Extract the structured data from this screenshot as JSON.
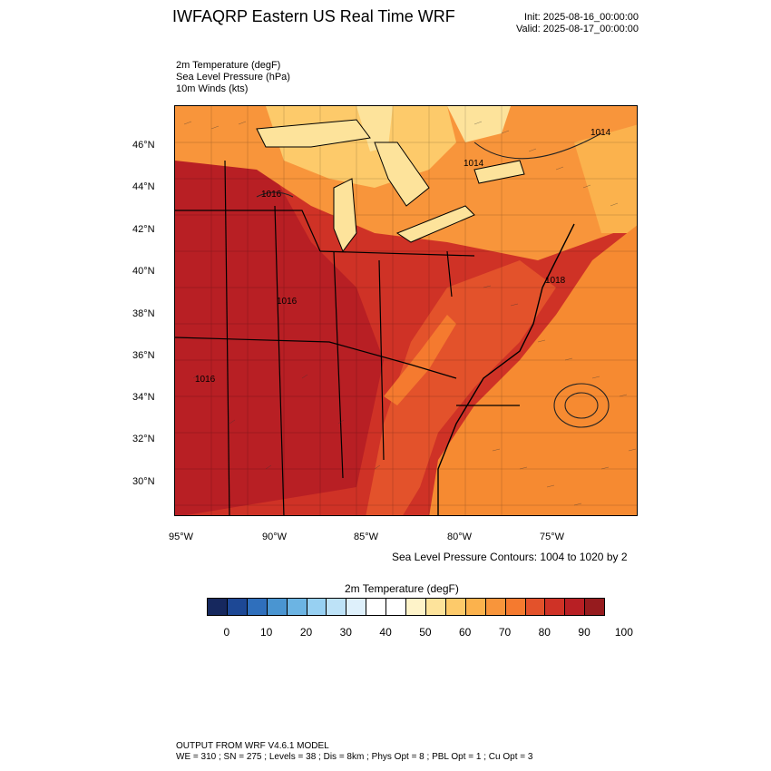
{
  "header": {
    "title": "IWFAQRP Eastern US Real Time WRF",
    "init": "Init: 2025-08-16_00:00:00",
    "valid": "Valid: 2025-08-17_00:00:00"
  },
  "fields": {
    "line1": "2m Temperature   (degF)",
    "line2": "Sea Level Pressure   (hPa)",
    "line3": "10m Winds   (kts)"
  },
  "map": {
    "lat_labels": [
      "46°N",
      "44°N",
      "42°N",
      "40°N",
      "38°N",
      "36°N",
      "34°N",
      "32°N",
      "30°N"
    ],
    "lon_labels": [
      "95°W",
      "90°W",
      "85°W",
      "80°W",
      "75°W"
    ],
    "pressure_labels": [
      "1014",
      "1014",
      "1016",
      "1018",
      "1016",
      "1016"
    ],
    "colors": {
      "hot": "#b81f24",
      "warm": "#e34a26",
      "mild": "#f57f2a",
      "cool": "#fbb24d",
      "pale": "#fde39b",
      "ocean": "#f68a31"
    }
  },
  "contour_note": "Sea Level Pressure Contours: 1004 to 1020 by 2",
  "colorbar": {
    "title": "2m Temperature  (degF)",
    "colors": [
      "#16285e",
      "#1d4895",
      "#2f6fbc",
      "#4a95d1",
      "#6cb4e3",
      "#97d0f2",
      "#bde2f7",
      "#def0fb",
      "#ffffff",
      "#ffffff",
      "#fef3c9",
      "#fde39b",
      "#fdca6a",
      "#fbb24d",
      "#f8953b",
      "#f57a2f",
      "#e3522b",
      "#cf3226",
      "#b81f24",
      "#961b1e"
    ],
    "labels": [
      "0",
      "10",
      "20",
      "30",
      "40",
      "50",
      "60",
      "70",
      "80",
      "90",
      "100"
    ]
  },
  "footer": {
    "line1": "OUTPUT FROM WRF V4.6.1 MODEL",
    "line2": "WE = 310 ; SN = 275 ; Levels = 38 ; Dis = 8km ; Phys Opt = 8 ; PBL Opt = 1 ; Cu Opt = 3"
  }
}
